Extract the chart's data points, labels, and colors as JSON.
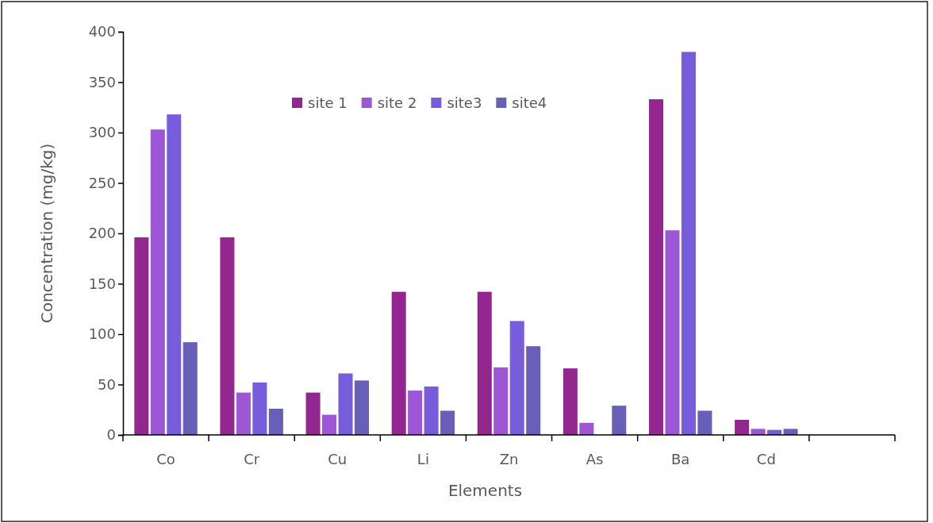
{
  "chart_data": {
    "type": "bar",
    "xlabel": "Elements",
    "ylabel": "Concentration (mg/kg)",
    "categories": [
      "Co",
      "Cr",
      "Cu",
      "Li",
      "Zn",
      "As",
      "Ba",
      "Cd",
      null
    ],
    "series": [
      {
        "name": "site 1",
        "color": "#93268f",
        "values": [
          196,
          196,
          42,
          142,
          142,
          66,
          333,
          15,
          null
        ]
      },
      {
        "name": "site 2",
        "color": "#9d57d4",
        "values": [
          303,
          42,
          20,
          44,
          67,
          12,
          203,
          6,
          null
        ]
      },
      {
        "name": "site3",
        "color": "#775ddb",
        "values": [
          318,
          52,
          61,
          48,
          113,
          null,
          380,
          5,
          null
        ]
      },
      {
        "name": "site4",
        "color": "#6860b8",
        "values": [
          92,
          26,
          54,
          24,
          88,
          29,
          24,
          6,
          null
        ]
      }
    ],
    "ylim": [
      0,
      400
    ],
    "yticks": [
      0,
      50,
      100,
      150,
      200,
      250,
      300,
      350,
      400
    ],
    "grid": false,
    "legend": "top"
  }
}
